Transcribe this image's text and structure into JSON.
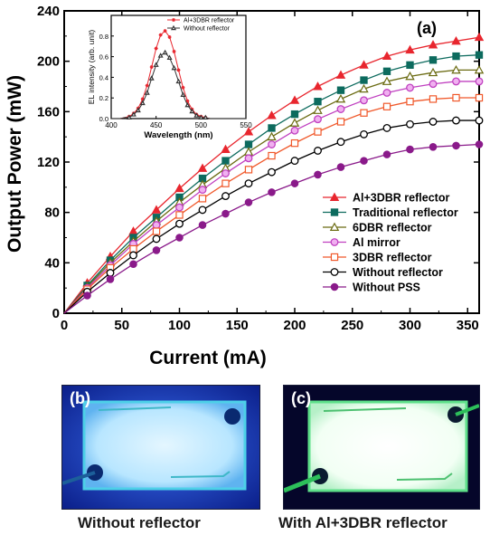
{
  "chart_data": {
    "main": {
      "type": "line",
      "panel_label": "(a)",
      "xlabel": "Current (mA)",
      "ylabel": "Output Power (mW)",
      "xlim": [
        0,
        360
      ],
      "ylim": [
        0,
        240
      ],
      "xticks": [
        "0",
        "50",
        "100",
        "150",
        "200",
        "250",
        "300",
        "350"
      ],
      "yticks": [
        "0",
        "40",
        "80",
        "120",
        "160",
        "200",
        "240"
      ],
      "legend_position": "lower-right",
      "x": [
        0,
        20,
        40,
        60,
        80,
        100,
        120,
        140,
        160,
        180,
        200,
        220,
        240,
        260,
        280,
        300,
        320,
        340,
        360
      ],
      "series": [
        {
          "name": "Al+3DBR reflector",
          "color": "#e8262e",
          "marker": "triangle-filled",
          "values": [
            0,
            24,
            45,
            65,
            82,
            99,
            115,
            130,
            144,
            157,
            169,
            180,
            189,
            197,
            204,
            209,
            213,
            216,
            219
          ]
        },
        {
          "name": "Traditional reflector",
          "color": "#0d6b5e",
          "marker": "square-filled",
          "values": [
            0,
            22,
            42,
            60,
            76,
            92,
            107,
            121,
            134,
            147,
            158,
            168,
            177,
            185,
            192,
            197,
            201,
            204,
            205
          ]
        },
        {
          "name": "6DBR reflector",
          "color": "#6b6b12",
          "marker": "triangle-open",
          "values": [
            0,
            21,
            40,
            57,
            73,
            88,
            102,
            115,
            128,
            140,
            151,
            161,
            170,
            178,
            184,
            188,
            191,
            193,
            193
          ]
        },
        {
          "name": "Al mirror",
          "color": "#c040c0",
          "marker": "circle-half",
          "values": [
            0,
            20,
            38,
            55,
            70,
            84,
            98,
            111,
            123,
            134,
            145,
            154,
            162,
            169,
            175,
            179,
            182,
            184,
            184
          ]
        },
        {
          "name": "3DBR reflector",
          "color": "#f0582a",
          "marker": "square-open",
          "values": [
            0,
            19,
            36,
            51,
            65,
            78,
            91,
            103,
            114,
            125,
            135,
            144,
            152,
            159,
            164,
            168,
            170,
            171,
            171
          ]
        },
        {
          "name": "Without reflector",
          "color": "#000000",
          "marker": "circle-open",
          "values": [
            0,
            17,
            32,
            46,
            59,
            71,
            82,
            93,
            103,
            112,
            121,
            129,
            136,
            142,
            147,
            150,
            152,
            153,
            153
          ]
        },
        {
          "name": "Without PSS",
          "color": "#8a1a8a",
          "marker": "circle-filled",
          "values": [
            0,
            14,
            27,
            39,
            50,
            60,
            70,
            79,
            88,
            96,
            103,
            110,
            116,
            121,
            126,
            130,
            132,
            133,
            134
          ]
        }
      ]
    },
    "inset": {
      "type": "line",
      "xlabel": "Wavelength (nm)",
      "ylabel": "EL intensity (arb. unit)",
      "xlim": [
        400,
        550
      ],
      "ylim": [
        0,
        1.0
      ],
      "xticks": [
        "400",
        "450",
        "500",
        "550"
      ],
      "yticks": [
        "0.0",
        "0.2",
        "0.4",
        "0.6",
        "0.8"
      ],
      "legend_position": "top-right",
      "x": [
        400,
        405,
        410,
        415,
        420,
        425,
        430,
        435,
        440,
        445,
        450,
        455,
        460,
        465,
        470,
        475,
        480,
        485,
        490,
        495,
        500,
        505,
        510,
        515,
        520,
        525,
        530,
        535,
        540,
        545,
        550
      ],
      "series": [
        {
          "name": "Al+3DBR reflector",
          "color": "#e8262e",
          "marker": "star",
          "values": [
            0.0,
            0.0,
            0.0,
            0.01,
            0.02,
            0.05,
            0.1,
            0.19,
            0.32,
            0.5,
            0.68,
            0.81,
            0.85,
            0.79,
            0.65,
            0.47,
            0.3,
            0.17,
            0.09,
            0.04,
            0.02,
            0.01,
            0.0,
            0.0,
            0.0,
            0.0,
            0.0,
            0.0,
            0.0,
            0.0,
            0.0
          ]
        },
        {
          "name": "Without reflector",
          "color": "#333333",
          "marker": "triangle-open",
          "values": [
            0.0,
            0.0,
            0.0,
            0.01,
            0.01,
            0.04,
            0.08,
            0.15,
            0.25,
            0.39,
            0.52,
            0.61,
            0.64,
            0.59,
            0.49,
            0.36,
            0.23,
            0.13,
            0.07,
            0.03,
            0.01,
            0.01,
            0.0,
            0.0,
            0.0,
            0.0,
            0.0,
            0.0,
            0.0,
            0.0,
            0.0
          ]
        }
      ]
    }
  },
  "photos": {
    "b": {
      "label": "(b)",
      "caption": "Without reflector"
    },
    "c": {
      "label": "(c)",
      "caption": "With Al+3DBR reflector"
    }
  }
}
